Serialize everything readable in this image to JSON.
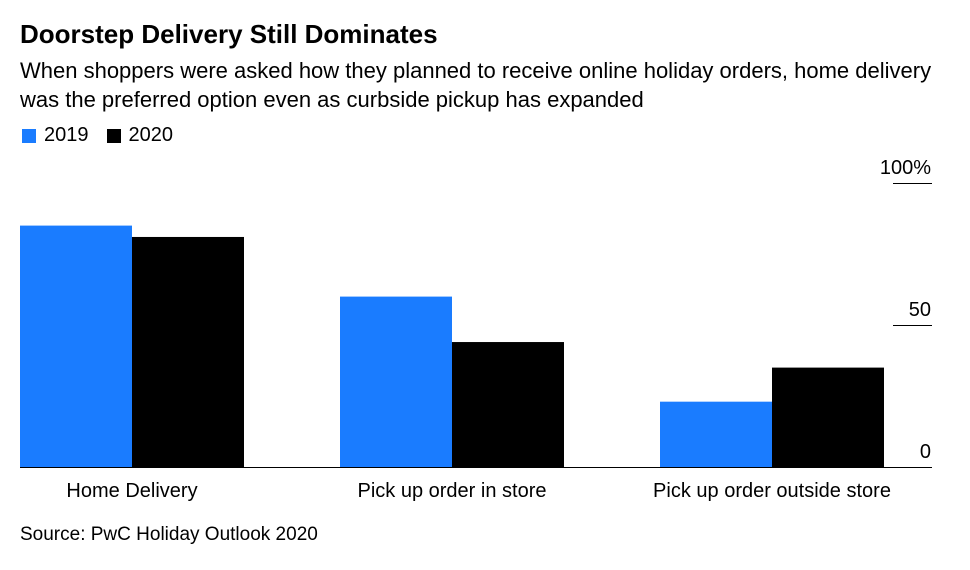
{
  "title": "Doorstep Delivery Still Dominates",
  "subtitle": "When shoppers were asked how they planned to receive online holiday orders, home delivery was the preferred option even as curbside pickup has expanded",
  "source": "Source: PwC Holiday Outlook 2020",
  "colors": {
    "2019": "#1a7cff",
    "2020": "#000000"
  },
  "chart_data": {
    "type": "bar",
    "title": "Doorstep Delivery Still Dominates",
    "subtitle": "When shoppers were asked how they planned to receive online holiday orders, home delivery was the preferred option even as curbside pickup has expanded",
    "categories": [
      "Home Delivery",
      "Pick up order in store",
      "Pick up order outside store"
    ],
    "series": [
      {
        "name": "2019",
        "values": [
          85,
          60,
          23
        ]
      },
      {
        "name": "2020",
        "values": [
          81,
          44,
          35
        ]
      }
    ],
    "y_ticks": [
      {
        "value": 0,
        "label": "0"
      },
      {
        "value": 50,
        "label": "50"
      },
      {
        "value": 100,
        "label": "100%"
      }
    ],
    "ylim": [
      0,
      100
    ],
    "xlabel": "",
    "ylabel": "",
    "legend_position": "top-left",
    "grid": false
  }
}
